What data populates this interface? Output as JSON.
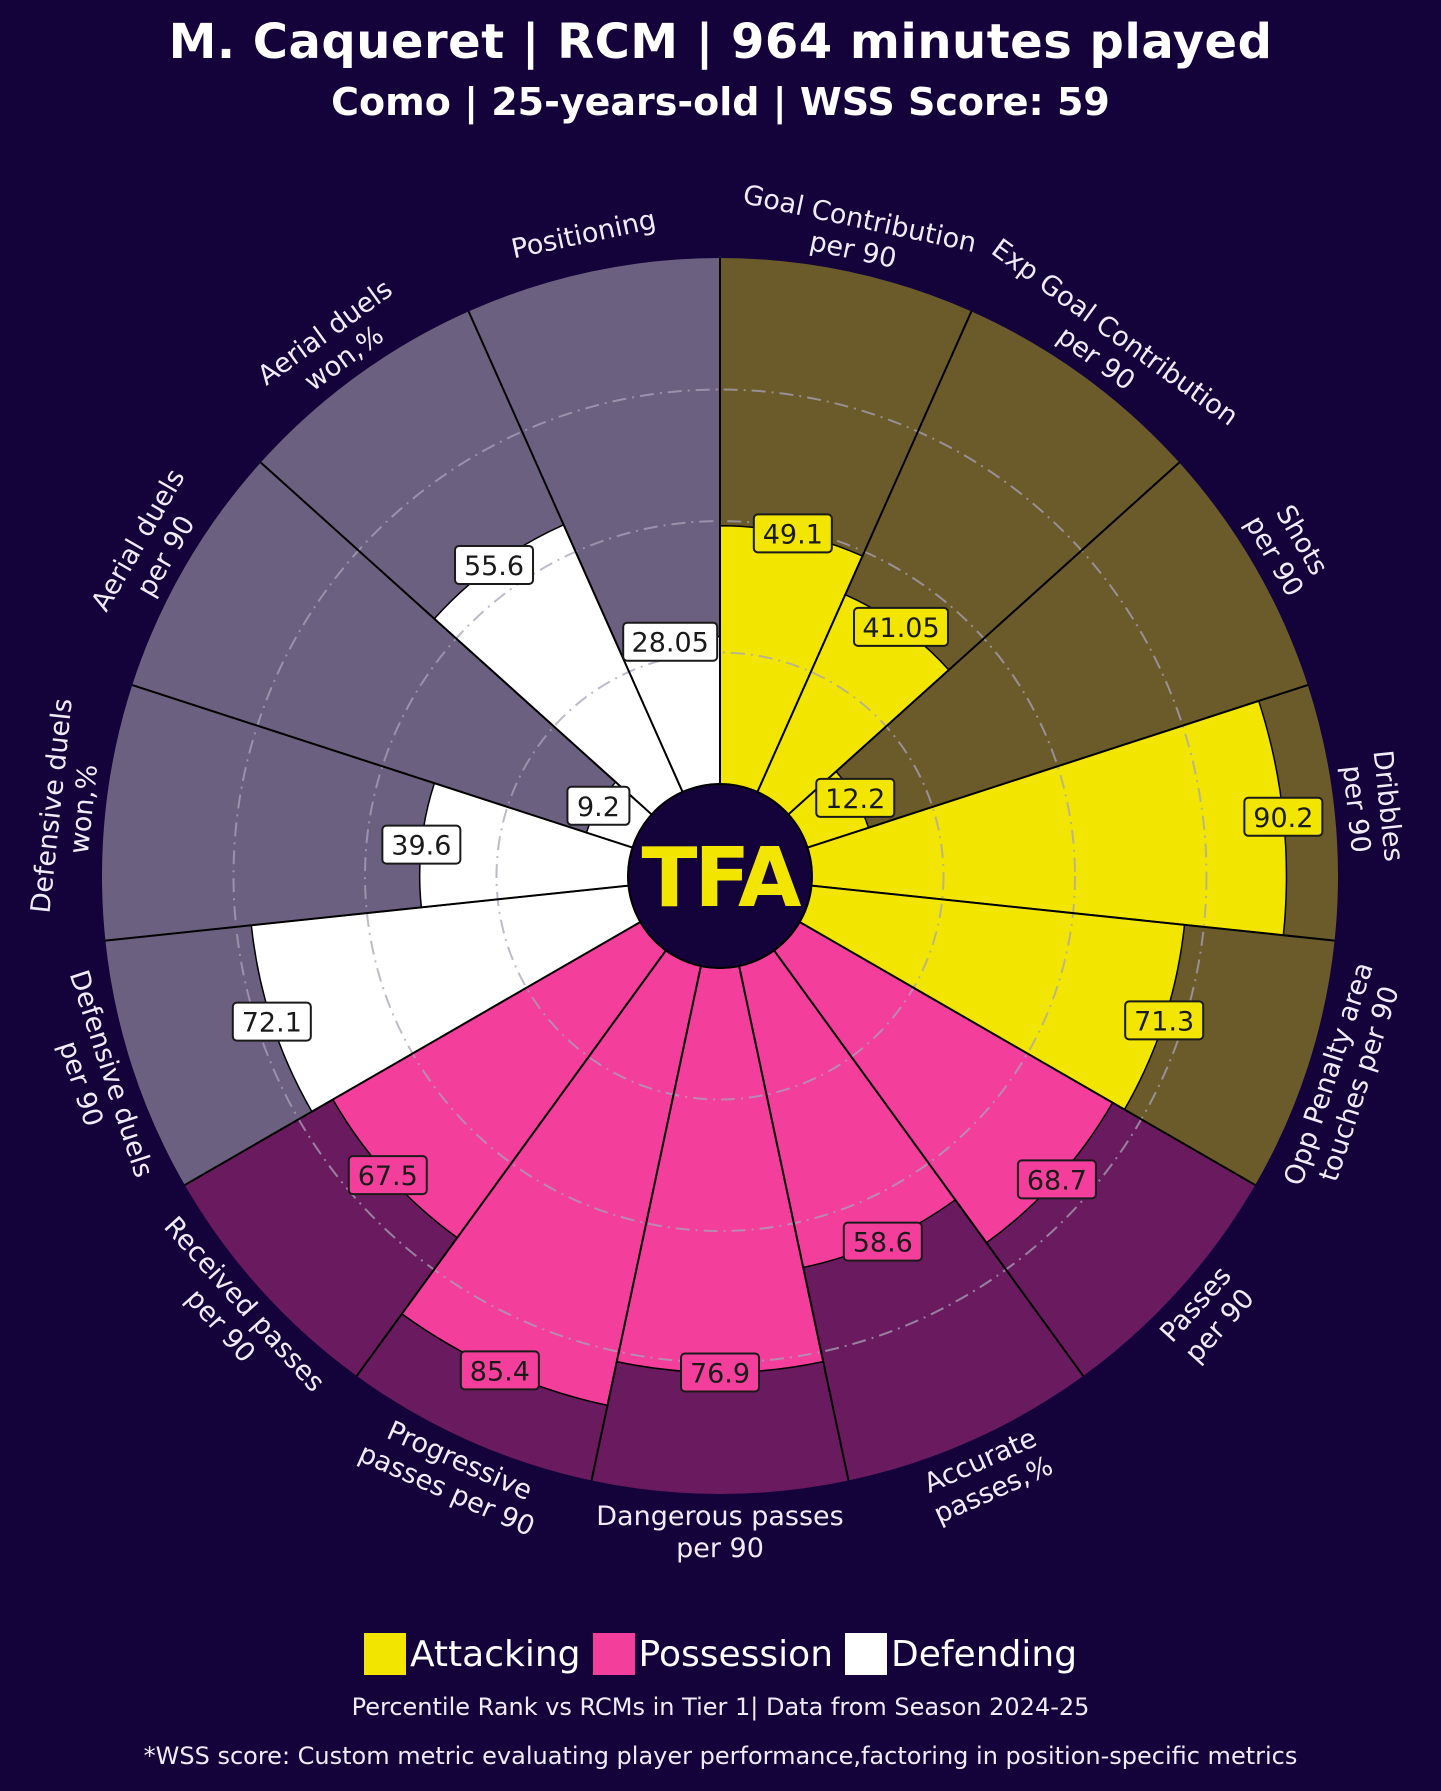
{
  "header": {
    "title": "M. Caqueret | RCM | 964 minutes played",
    "subtitle": "Como | 25-years-old | WSS Score: 59"
  },
  "center_logo": {
    "text": "TFA",
    "color": "#f2e600",
    "background": "#14023a"
  },
  "chart_data": {
    "type": "polar-bar",
    "scale": [
      0,
      100
    ],
    "categories": [
      {
        "label": "Goal Contribution\nper 90",
        "value_label": "49.1",
        "value": 49.1,
        "group": "Attacking"
      },
      {
        "label": "Exp Goal Contribution\nper 90",
        "value_label": "41.05",
        "value": 41.05,
        "group": "Attacking"
      },
      {
        "label": "Shots\nper 90",
        "value_label": "12.2",
        "value": 12.2,
        "group": "Attacking"
      },
      {
        "label": "Dribbles\nper 90",
        "value_label": "90.2",
        "value": 90.2,
        "group": "Attacking"
      },
      {
        "label": "Opp Penalty area\ntouches per 90",
        "value_label": "71.3",
        "value": 71.3,
        "group": "Attacking"
      },
      {
        "label": "Passes\nper 90",
        "value_label": "68.7",
        "value": 68.7,
        "group": "Possession"
      },
      {
        "label": "Accurate\npasses,%",
        "value_label": "58.6",
        "value": 58.6,
        "group": "Possession"
      },
      {
        "label": "Dangerous passes\nper 90",
        "value_label": "76.9",
        "value": 76.9,
        "group": "Possession"
      },
      {
        "label": "Progressive\npasses per 90",
        "value_label": "85.4",
        "value": 85.4,
        "group": "Possession"
      },
      {
        "label": "Received passes\nper 90",
        "value_label": "67.5",
        "value": 67.5,
        "group": "Possession"
      },
      {
        "label": "Defensive duels\nper 90",
        "value_label": "72.1",
        "value": 72.1,
        "group": "Defending"
      },
      {
        "label": "Defensive duels\nwon,%",
        "value_label": "39.6",
        "value": 39.6,
        "group": "Defending"
      },
      {
        "label": "Aerial duels\nper 90",
        "value_label": "9.2",
        "value": 9.2,
        "group": "Defending"
      },
      {
        "label": "Aerial duels\nwon,%",
        "value_label": "55.6",
        "value": 55.6,
        "group": "Defending"
      },
      {
        "label": "Positioning",
        "value_label": "28.05",
        "value": 28.05,
        "group": "Defending"
      }
    ],
    "groups": [
      {
        "name": "Attacking",
        "bar_color": "#f2e600",
        "background_color": "#6b5a2a"
      },
      {
        "name": "Possession",
        "bar_color": "#f43e9c",
        "background_color": "#6a1a5e"
      },
      {
        "name": "Defending",
        "bar_color": "#ffffff",
        "background_color": "#6c6080"
      }
    ],
    "gridlines": "dash-dot",
    "legend_position": "bottom-center"
  },
  "legend": {
    "items": [
      {
        "label": "Attacking",
        "color": "#f2e600"
      },
      {
        "label": "Possession",
        "color": "#f43e9c"
      },
      {
        "label": "Defending",
        "color": "#ffffff"
      }
    ]
  },
  "footer": {
    "line1": "Percentile Rank vs RCMs in Tier 1| Data from Season 2024-25",
    "line2": "*WSS score: Custom metric evaluating player performance,factoring in position-specific metrics"
  }
}
